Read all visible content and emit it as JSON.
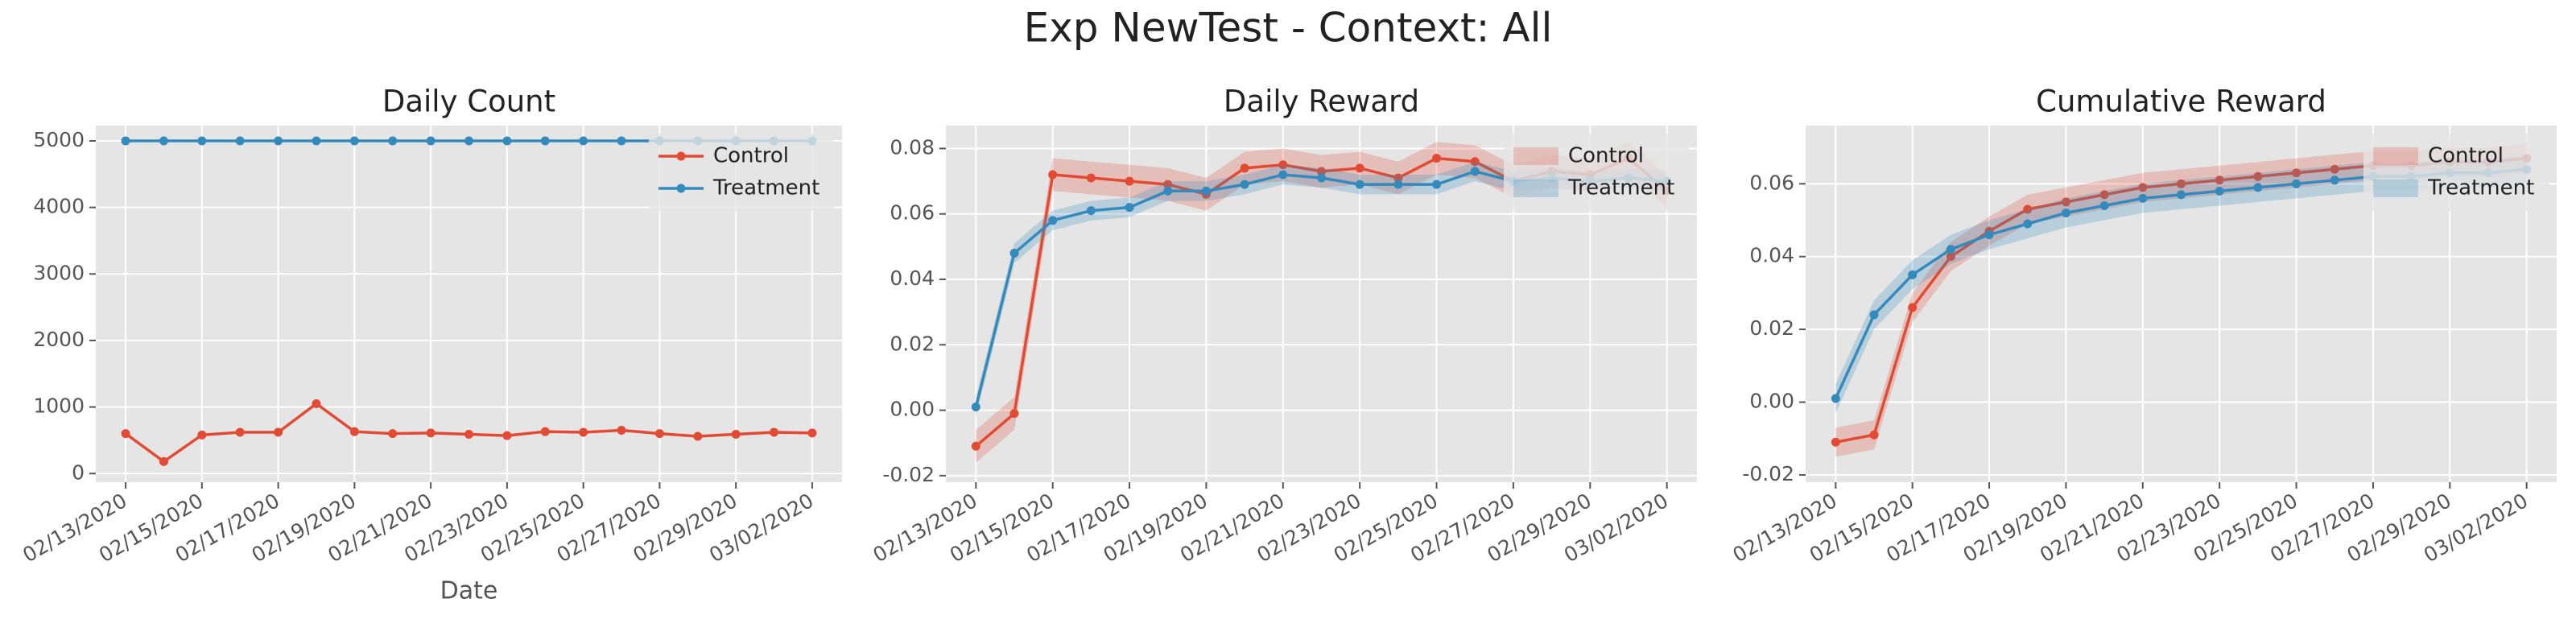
{
  "title": "Exp NewTest - Context: All",
  "chart_data": [
    {
      "type": "line",
      "title": "Daily Count",
      "xlabel": "Date",
      "x": [
        "02/13/2020",
        "02/14/2020",
        "02/15/2020",
        "02/16/2020",
        "02/17/2020",
        "02/18/2020",
        "02/19/2020",
        "02/20/2020",
        "02/21/2020",
        "02/22/2020",
        "02/23/2020",
        "02/24/2020",
        "02/25/2020",
        "02/26/2020",
        "02/27/2020",
        "02/28/2020",
        "02/29/2020",
        "03/01/2020",
        "03/02/2020"
      ],
      "xticks": [
        "02/13/2020",
        "02/15/2020",
        "02/17/2020",
        "02/19/2020",
        "02/21/2020",
        "02/23/2020",
        "02/25/2020",
        "02/27/2020",
        "02/29/2020",
        "03/02/2020"
      ],
      "ylim": [
        -130,
        5230
      ],
      "yticks": [
        0,
        1000,
        2000,
        3000,
        4000,
        5000
      ],
      "grid": true,
      "legend": "upper right",
      "series": [
        {
          "name": "Control",
          "color": "#E24A33",
          "values": [
            600,
            180,
            580,
            620,
            620,
            1050,
            630,
            600,
            610,
            590,
            570,
            630,
            620,
            650,
            600,
            560,
            590,
            620,
            610
          ]
        },
        {
          "name": "Treatment",
          "color": "#348ABD",
          "values": [
            5000,
            5000,
            5000,
            5000,
            5000,
            5000,
            5000,
            5000,
            5000,
            5000,
            5000,
            5000,
            5000,
            5000,
            5000,
            5000,
            5000,
            5000,
            5000
          ]
        }
      ]
    },
    {
      "type": "line",
      "title": "Daily Reward",
      "x": [
        "02/13/2020",
        "02/14/2020",
        "02/15/2020",
        "02/16/2020",
        "02/17/2020",
        "02/18/2020",
        "02/19/2020",
        "02/20/2020",
        "02/21/2020",
        "02/22/2020",
        "02/23/2020",
        "02/24/2020",
        "02/25/2020",
        "02/26/2020",
        "02/27/2020",
        "02/28/2020",
        "02/29/2020",
        "03/01/2020",
        "03/02/2020"
      ],
      "xticks": [
        "02/13/2020",
        "02/15/2020",
        "02/17/2020",
        "02/19/2020",
        "02/21/2020",
        "02/23/2020",
        "02/25/2020",
        "02/27/2020",
        "02/29/2020",
        "03/02/2020"
      ],
      "ylim": [
        -0.022,
        0.087
      ],
      "yticks": [
        -0.02,
        {
          "value": 0,
          "label": "0.00"
        },
        0.02,
        0.04,
        0.06,
        0.08
      ],
      "grid": true,
      "legend": "upper right",
      "series": [
        {
          "name": "Control",
          "color": "#E24A33",
          "values": [
            -0.011,
            -0.001,
            0.072,
            0.071,
            0.07,
            0.069,
            0.066,
            0.074,
            0.075,
            0.073,
            0.074,
            0.071,
            0.077,
            0.076,
            0.07,
            0.073,
            0.072,
            0.077,
            0.067
          ],
          "lower": [
            -0.016,
            -0.006,
            0.067,
            0.066,
            0.065,
            0.064,
            0.061,
            0.069,
            0.07,
            0.068,
            0.069,
            0.066,
            0.072,
            0.071,
            0.065,
            0.068,
            0.067,
            0.072,
            0.062
          ],
          "upper": [
            -0.006,
            0.004,
            0.077,
            0.076,
            0.075,
            0.074,
            0.071,
            0.079,
            0.08,
            0.078,
            0.079,
            0.076,
            0.082,
            0.081,
            0.075,
            0.078,
            0.077,
            0.082,
            0.072
          ]
        },
        {
          "name": "Treatment",
          "color": "#348ABD",
          "values": [
            0.001,
            0.048,
            0.058,
            0.061,
            0.062,
            0.067,
            0.067,
            0.069,
            0.072,
            0.071,
            0.069,
            0.069,
            0.069,
            0.073,
            0.07,
            0.071,
            0.07,
            0.071,
            0.07
          ],
          "lower": [
            -0.002,
            0.045,
            0.055,
            0.058,
            0.059,
            0.064,
            0.064,
            0.066,
            0.069,
            0.068,
            0.066,
            0.066,
            0.066,
            0.07,
            0.067,
            0.068,
            0.067,
            0.068,
            0.067
          ],
          "upper": [
            0.004,
            0.051,
            0.061,
            0.064,
            0.065,
            0.07,
            0.07,
            0.072,
            0.075,
            0.074,
            0.072,
            0.072,
            0.072,
            0.076,
            0.073,
            0.074,
            0.073,
            0.074,
            0.073
          ]
        }
      ]
    },
    {
      "type": "line",
      "title": "Cumulative Reward",
      "x": [
        "02/13/2020",
        "02/14/2020",
        "02/15/2020",
        "02/16/2020",
        "02/17/2020",
        "02/18/2020",
        "02/19/2020",
        "02/20/2020",
        "02/21/2020",
        "02/22/2020",
        "02/23/2020",
        "02/24/2020",
        "02/25/2020",
        "02/26/2020",
        "02/27/2020",
        "02/28/2020",
        "02/29/2020",
        "03/01/2020",
        "03/02/2020"
      ],
      "xticks": [
        "02/13/2020",
        "02/15/2020",
        "02/17/2020",
        "02/19/2020",
        "02/21/2020",
        "02/23/2020",
        "02/25/2020",
        "02/27/2020",
        "02/29/2020",
        "03/02/2020"
      ],
      "ylim": [
        -0.022,
        0.076
      ],
      "yticks": [
        -0.02,
        {
          "value": 0,
          "label": "0.00"
        },
        0.02,
        0.04,
        0.06
      ],
      "grid": true,
      "legend": "upper right",
      "series": [
        {
          "name": "Control",
          "color": "#E24A33",
          "values": [
            -0.011,
            -0.009,
            0.026,
            0.04,
            0.047,
            0.053,
            0.055,
            0.057,
            0.059,
            0.06,
            0.061,
            0.062,
            0.063,
            0.064,
            0.065,
            0.065,
            0.066,
            0.066,
            0.067
          ],
          "lower": [
            -0.015,
            -0.013,
            0.022,
            0.036,
            0.043,
            0.049,
            0.051,
            0.053,
            0.055,
            0.056,
            0.057,
            0.058,
            0.059,
            0.06,
            0.061,
            0.061,
            0.062,
            0.062,
            0.063
          ],
          "upper": [
            -0.007,
            -0.005,
            0.03,
            0.044,
            0.051,
            0.057,
            0.059,
            0.061,
            0.063,
            0.064,
            0.065,
            0.066,
            0.067,
            0.068,
            0.069,
            0.069,
            0.07,
            0.07,
            0.071
          ]
        },
        {
          "name": "Treatment",
          "color": "#348ABD",
          "values": [
            0.001,
            0.024,
            0.035,
            0.042,
            0.046,
            0.049,
            0.052,
            0.054,
            0.056,
            0.057,
            0.058,
            0.059,
            0.06,
            0.061,
            0.062,
            0.062,
            0.063,
            0.063,
            0.064
          ],
          "lower": [
            -0.003,
            0.02,
            0.031,
            0.038,
            0.042,
            0.045,
            0.048,
            0.05,
            0.052,
            0.053,
            0.054,
            0.055,
            0.056,
            0.057,
            0.058,
            0.058,
            0.059,
            0.059,
            0.06
          ],
          "upper": [
            0.005,
            0.028,
            0.039,
            0.046,
            0.05,
            0.053,
            0.056,
            0.058,
            0.06,
            0.061,
            0.062,
            0.063,
            0.064,
            0.065,
            0.066,
            0.066,
            0.067,
            0.067,
            0.068
          ]
        }
      ]
    }
  ]
}
